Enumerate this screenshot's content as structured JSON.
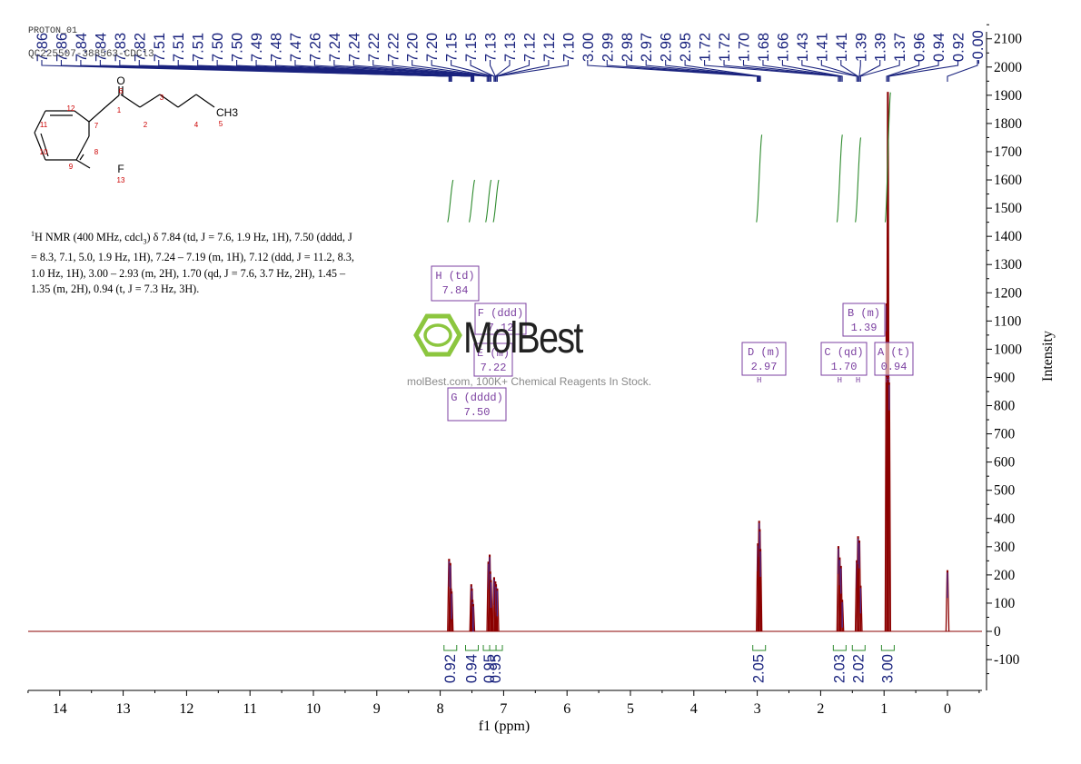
{
  "header": {
    "experiment": "PROTON_01",
    "sample": "QC225507-388563-CDCl3"
  },
  "structure": {
    "atom_labels": [
      "O",
      "6",
      "1",
      "2",
      "3",
      "4",
      "5",
      "CH3",
      "7",
      "8",
      "9",
      "10",
      "11",
      "12",
      "F",
      "13"
    ]
  },
  "nmr_description": {
    "nucleus": "1",
    "line1": "H NMR (400 MHz, cdcl",
    "sub3": "3",
    "rest": ") δ 7.84 (td, J = 7.6, 1.9 Hz, 1H), 7.50 (dddd, J = 8.3, 7.1, 5.0, 1.9 Hz, 1H), 7.24 – 7.19 (m, 1H), 7.12 (ddd, J = 11.2, 8.3, 1.0 Hz, 1H), 3.00 – 2.93 (m, 2H), 1.70 (qd, J = 7.6, 3.7 Hz, 2H), 1.45 – 1.35 (m, 2H), 0.94 (t, J = 7.3 Hz, 3H)."
  },
  "watermark": {
    "brand": "MolBest",
    "tagline": "molBest.com, 100K+ Chemical Reagents In Stock."
  },
  "colors": {
    "spectrum": "#8b0000",
    "peak_labels": "#1a237e",
    "integral": "#2e8b2e",
    "multiplet_box": "#7b3fa0",
    "logo": "#8cc63f"
  },
  "chart_data": {
    "type": "line",
    "xlabel": "f1 (ppm)",
    "ylabel": "Intensity",
    "x_reversed": true,
    "xlim": [
      14.5,
      -0.5
    ],
    "ylim": [
      -200,
      2150
    ],
    "x_ticks": [
      14,
      13,
      12,
      11,
      10,
      9,
      8,
      7,
      6,
      5,
      4,
      3,
      2,
      1,
      0
    ],
    "y_ticks": [
      -100,
      0,
      100,
      200,
      300,
      400,
      500,
      600,
      700,
      800,
      900,
      1000,
      1100,
      1200,
      1300,
      1400,
      1500,
      1600,
      1700,
      1800,
      1900,
      2000,
      2100
    ],
    "peak_labels": [
      "7.86",
      "7.86",
      "7.84",
      "7.84",
      "7.83",
      "7.82",
      "7.51",
      "7.51",
      "7.51",
      "7.50",
      "7.50",
      "7.49",
      "7.48",
      "7.47",
      "7.26",
      "7.24",
      "7.24",
      "7.22",
      "7.22",
      "7.20",
      "7.20",
      "7.15",
      "7.15",
      "7.13",
      "7.13",
      "7.12",
      "7.12",
      "7.10",
      "3.00",
      "2.99",
      "2.98",
      "2.97",
      "2.96",
      "2.95",
      "1.72",
      "1.72",
      "1.70",
      "1.68",
      "1.66",
      "1.43",
      "1.41",
      "1.41",
      "1.39",
      "1.39",
      "1.37",
      "0.96",
      "0.94",
      "0.92",
      "-0.00"
    ],
    "peaks": [
      {
        "ppm": 7.86,
        "h": 255
      },
      {
        "ppm": 7.84,
        "h": 240
      },
      {
        "ppm": 7.83,
        "h": 150
      },
      {
        "ppm": 7.82,
        "h": 140
      },
      {
        "ppm": 7.51,
        "h": 165
      },
      {
        "ppm": 7.5,
        "h": 150
      },
      {
        "ppm": 7.49,
        "h": 110
      },
      {
        "ppm": 7.48,
        "h": 95
      },
      {
        "ppm": 7.24,
        "h": 245
      },
      {
        "ppm": 7.22,
        "h": 270
      },
      {
        "ppm": 7.21,
        "h": 210
      },
      {
        "ppm": 7.2,
        "h": 180
      },
      {
        "ppm": 7.15,
        "h": 190
      },
      {
        "ppm": 7.13,
        "h": 175
      },
      {
        "ppm": 7.12,
        "h": 165
      },
      {
        "ppm": 7.1,
        "h": 150
      },
      {
        "ppm": 2.99,
        "h": 310
      },
      {
        "ppm": 2.97,
        "h": 390
      },
      {
        "ppm": 2.96,
        "h": 360
      },
      {
        "ppm": 2.95,
        "h": 290
      },
      {
        "ppm": 1.72,
        "h": 300
      },
      {
        "ppm": 1.7,
        "h": 260
      },
      {
        "ppm": 1.68,
        "h": 230
      },
      {
        "ppm": 1.66,
        "h": 110
      },
      {
        "ppm": 1.43,
        "h": 250
      },
      {
        "ppm": 1.41,
        "h": 335
      },
      {
        "ppm": 1.39,
        "h": 320
      },
      {
        "ppm": 1.37,
        "h": 160
      },
      {
        "ppm": 0.96,
        "h": 1160
      },
      {
        "ppm": 0.94,
        "h": 1910
      },
      {
        "ppm": 0.92,
        "h": 880
      },
      {
        "ppm": 0.0,
        "h": 215
      }
    ],
    "multiplets": [
      {
        "letter": "H",
        "type": "td",
        "ppm": "7.84"
      },
      {
        "letter": "F",
        "type": "ddd",
        "ppm": "7.12"
      },
      {
        "letter": "E",
        "type": "m",
        "ppm": "7.22"
      },
      {
        "letter": "G",
        "type": "dddd",
        "ppm": "7.50"
      },
      {
        "letter": "D",
        "type": "m",
        "ppm": "2.97"
      },
      {
        "letter": "C",
        "type": "qd",
        "ppm": "1.70"
      },
      {
        "letter": "B",
        "type": "m",
        "ppm": "1.39"
      },
      {
        "letter": "A",
        "type": "t",
        "ppm": "0.94"
      }
    ],
    "integrals": [
      {
        "ppm": 7.84,
        "value": "0.92"
      },
      {
        "ppm": 7.5,
        "value": "0.94"
      },
      {
        "ppm": 7.22,
        "value": "0.95"
      },
      {
        "ppm": 7.12,
        "value": "0.95"
      },
      {
        "ppm": 2.97,
        "value": "2.05"
      },
      {
        "ppm": 1.7,
        "value": "2.03"
      },
      {
        "ppm": 1.4,
        "value": "2.02"
      },
      {
        "ppm": 0.94,
        "value": "3.00"
      }
    ]
  }
}
